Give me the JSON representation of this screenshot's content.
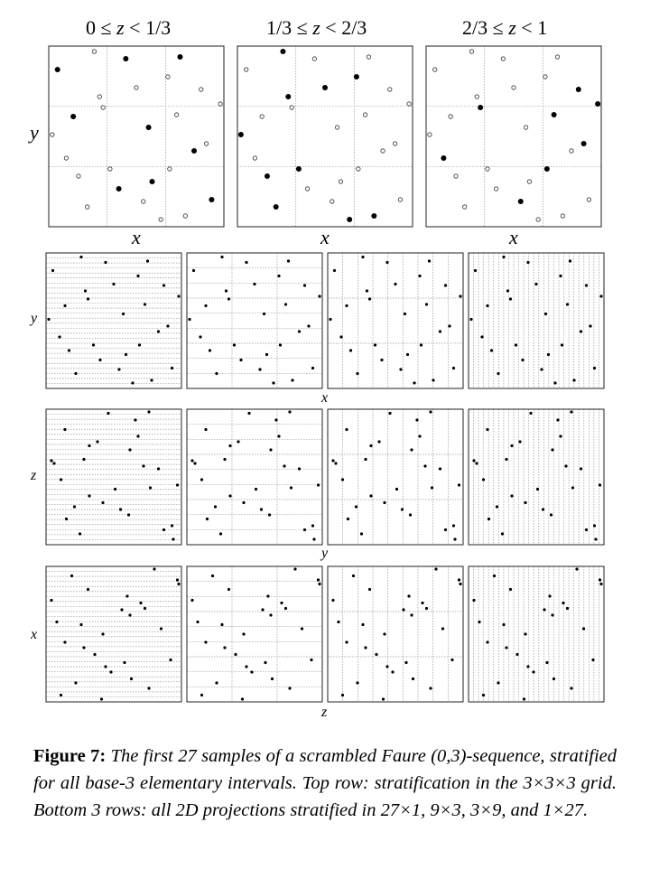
{
  "top_row": {
    "panel_titles": [
      {
        "lo": "0",
        "hi": "1/3"
      },
      {
        "lo": "1/3",
        "hi": "2/3"
      },
      {
        "lo": "2/3",
        "hi": "1"
      }
    ],
    "x_label": "x",
    "y_label": "y"
  },
  "projection_rows": [
    {
      "row_label": "y",
      "x_label": "x"
    },
    {
      "row_label": "z",
      "x_label": "y"
    },
    {
      "row_label": "x",
      "x_label": "z"
    }
  ],
  "projection_stratifications": [
    "27×1",
    "9×3",
    "3×9",
    "1×27"
  ],
  "caption": {
    "label": "Figure 7:",
    "text": "The first 27 samples of a scrambled Faure (0,3)-sequence, stratified for all base-3 elementary intervals. Top row: stratification in the 3×3×3 grid. Bottom 3 rows: all 2D projections stratified in 27×1, 9×3, 3×9, and 1×27."
  },
  "chart_data": {
    "type": "scatter",
    "points": 27,
    "samples_xyz": [
      [
        0.44,
        0.93,
        0.14
      ],
      [
        0.14,
        0.61,
        0.22
      ],
      [
        0.4,
        0.21,
        0.28
      ],
      [
        0.68,
        0.83,
        0.56
      ],
      [
        0.64,
        0.04,
        0.62
      ],
      [
        0.9,
        0.46,
        0.97
      ],
      [
        0.73,
        0.62,
        0.7
      ],
      [
        0.1,
        0.38,
        0.76
      ],
      [
        0.54,
        0.14,
        0.85
      ],
      [
        0.02,
        0.51,
        0.41
      ],
      [
        0.22,
        0.11,
        0.48
      ],
      [
        0.78,
        0.06,
        0.6
      ],
      [
        0.35,
        0.32,
        0.36
      ],
      [
        0.87,
        0.76,
        0.98
      ],
      [
        0.98,
        0.68,
        0.8
      ],
      [
        0.83,
        0.42,
        0.31
      ],
      [
        0.5,
        0.77,
        0.42
      ],
      [
        0.59,
        0.25,
        0.08
      ],
      [
        0.05,
        0.87,
        0.11
      ],
      [
        0.26,
        0.97,
        0.44
      ],
      [
        0.31,
        0.66,
        0.92
      ],
      [
        0.17,
        0.28,
        0.63
      ],
      [
        0.69,
        0.32,
        0.73
      ],
      [
        0.93,
        0.15,
        0.19
      ],
      [
        0.29,
        0.72,
        0.58
      ],
      [
        0.75,
        0.94,
        0.04
      ],
      [
        0.57,
        0.55,
        0.26
      ]
    ]
  }
}
